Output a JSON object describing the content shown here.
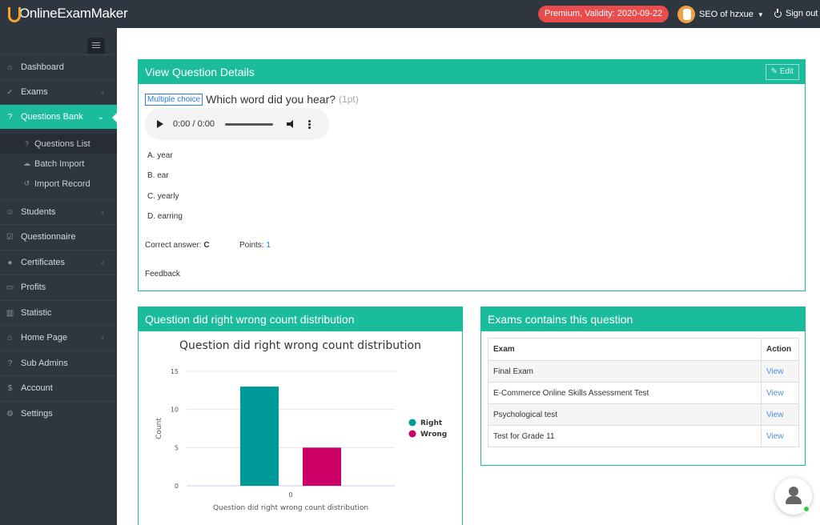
{
  "app": {
    "logo_text": "OnlineExamMaker",
    "premium_badge": "Premium, Validity: 2020-09-22",
    "user_name": "SEO of hzxue",
    "signout_label": "Sign out"
  },
  "sidebar": {
    "items": [
      {
        "label": "Dashboard",
        "icon": "home-icon",
        "arrow": false
      },
      {
        "label": "Exams",
        "icon": "check-circle-icon",
        "arrow": true
      },
      {
        "label": "Questions Bank",
        "icon": "question-circle-icon",
        "arrow": true,
        "active": true
      },
      {
        "label": "Students",
        "icon": "users-icon",
        "arrow": true
      },
      {
        "label": "Questionnaire",
        "icon": "checkbox-icon",
        "arrow": false
      },
      {
        "label": "Certificates",
        "icon": "medal-icon",
        "arrow": true
      },
      {
        "label": "Profits",
        "icon": "credit-card-icon",
        "arrow": false
      },
      {
        "label": "Statistic",
        "icon": "bar-chart-icon",
        "arrow": false
      },
      {
        "label": "Home Page",
        "icon": "house-icon",
        "arrow": true
      },
      {
        "label": "Sub Admins",
        "icon": "question-circle-icon",
        "arrow": false
      },
      {
        "label": "Account",
        "icon": "dollar-icon",
        "arrow": false
      },
      {
        "label": "Settings",
        "icon": "gear-icon",
        "arrow": false
      }
    ],
    "sub_items": [
      {
        "label": "Questions List",
        "icon": "question-circle-icon"
      },
      {
        "label": "Batch Import",
        "icon": "cloud-upload-icon"
      },
      {
        "label": "Import Record",
        "icon": "history-icon"
      }
    ]
  },
  "question_panel": {
    "title": "View Question Details",
    "edit_label": "Edit",
    "type_label": "Multiple choice",
    "question_text": "Which word did you hear?",
    "points_suffix": "(1pt)",
    "audio_time": "0:00 / 0:00",
    "options": [
      "A. year",
      "B. ear",
      "C. yearly",
      "D. earring"
    ],
    "correct_answer_label": "Correct answer:",
    "correct_answer_value": "C",
    "points_label": "Points:",
    "points_value": "1",
    "feedback_label": "Feedback"
  },
  "distribution_panel": {
    "title": "Question did right wrong count distribution"
  },
  "chart_data": {
    "type": "bar",
    "title": "Question did right wrong count distribution",
    "xlabel": "Question did right wrong count distribution",
    "ylabel": "Count",
    "categories": [
      "0"
    ],
    "series": [
      {
        "name": "Right",
        "values": [
          13
        ],
        "color": "#00999a"
      },
      {
        "name": "Wrong",
        "values": [
          5
        ],
        "color": "#cc0066"
      }
    ],
    "ylim": [
      0,
      15
    ],
    "yticks": [
      0,
      5,
      10,
      15
    ],
    "grid": true,
    "legend": "right"
  },
  "exams_panel": {
    "title": "Exams contains this question",
    "columns": [
      "Exam",
      "Action"
    ],
    "rows": [
      {
        "exam": "Final Exam",
        "action": "View"
      },
      {
        "exam": "E-Commerce Online Skills Assessment Test",
        "action": "View"
      },
      {
        "exam": "Psychological test",
        "action": "View"
      },
      {
        "exam": "Test for Grade 11",
        "action": "View"
      }
    ]
  }
}
